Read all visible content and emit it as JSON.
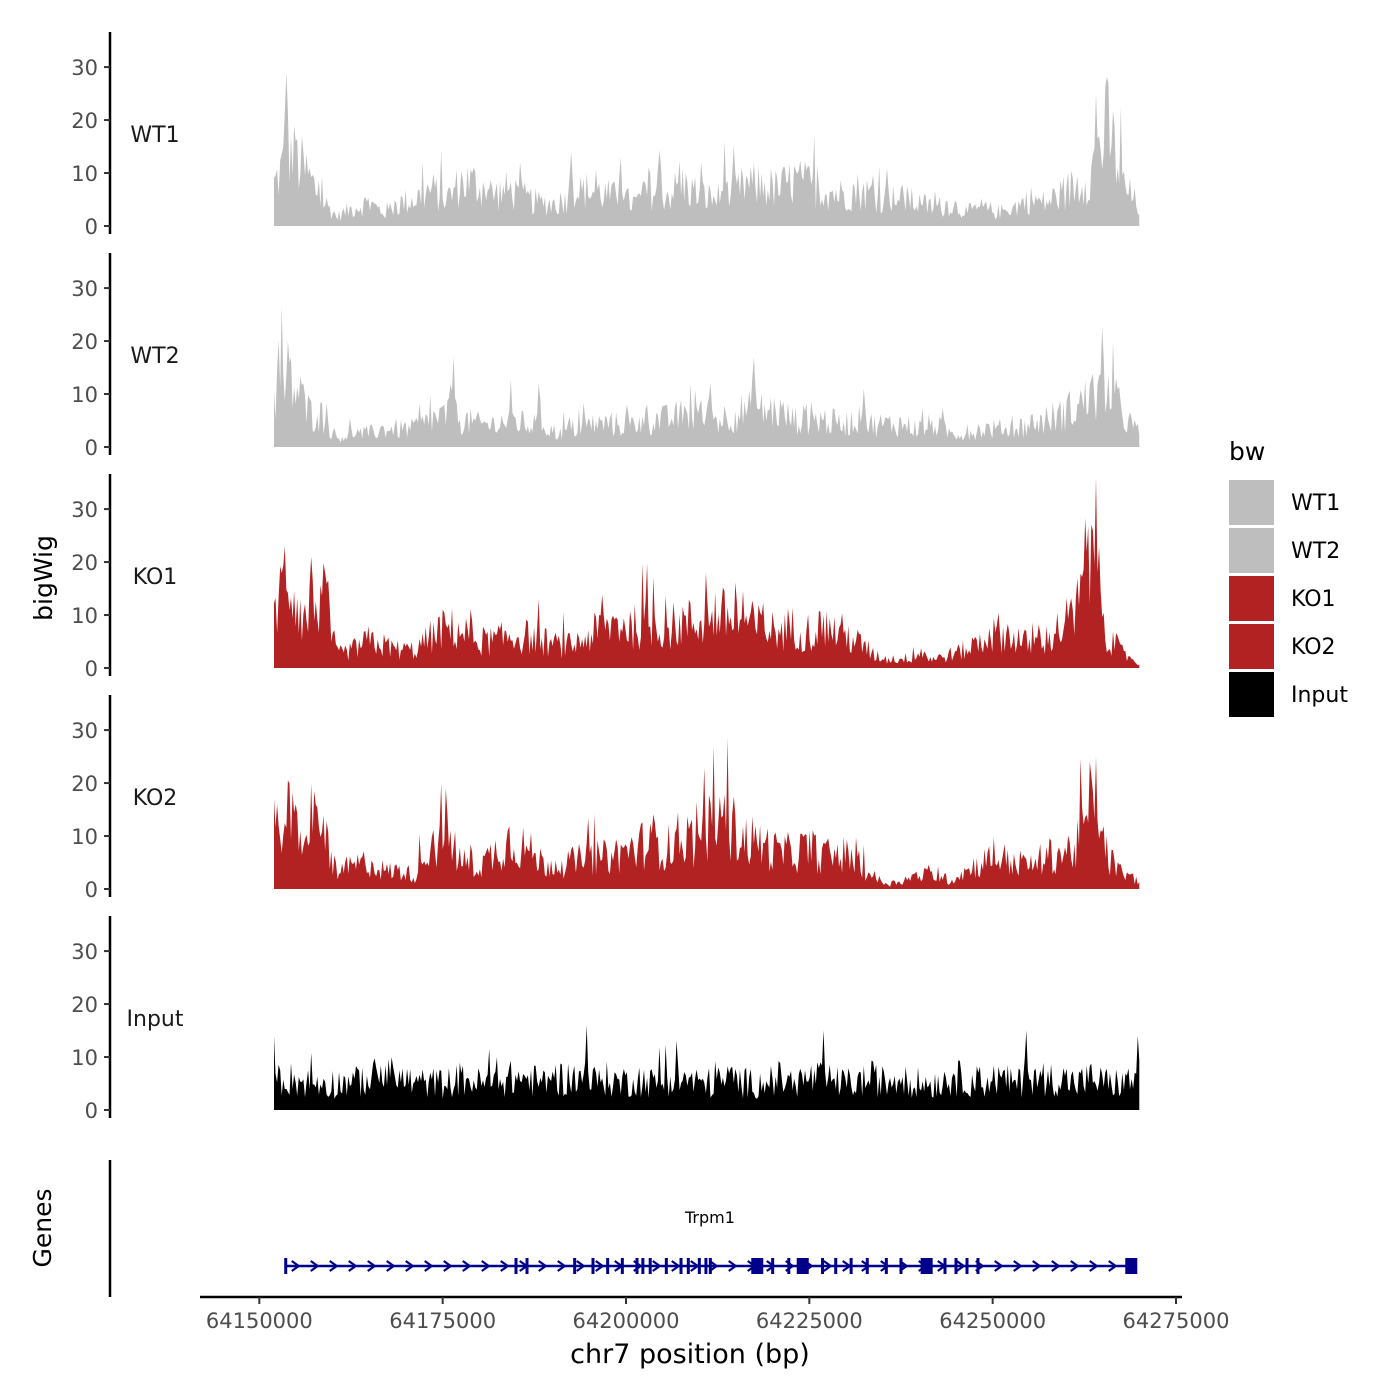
{
  "chart_data": {
    "type": "area",
    "title": "",
    "ylabel": "bigWig",
    "xlabel": "chr7 position (bp)",
    "ylim": [
      0,
      37
    ],
    "yticks": [
      0,
      10,
      20,
      30
    ],
    "xlim": [
      64146000,
      64275000
    ],
    "xticks": [
      64150000,
      64175000,
      64200000,
      64225000,
      64250000,
      64275000
    ],
    "xtick_labels": [
      "64150000",
      "64175000",
      "64200000",
      "64225000",
      "64250000",
      "64275000"
    ],
    "data_range": [
      64152000,
      64270000
    ],
    "legend": {
      "title": "bw",
      "placement": "right",
      "entries": [
        {
          "label": "WT1",
          "color": "#bebebe"
        },
        {
          "label": "WT2",
          "color": "#bebebe"
        },
        {
          "label": "KO1",
          "color": "#b22222"
        },
        {
          "label": "KO2",
          "color": "#b22222"
        },
        {
          "label": "Input",
          "color": "#000000"
        }
      ]
    },
    "series": [
      {
        "name": "WT1",
        "color": "#bebebe",
        "profile": [
          9,
          16,
          12,
          6,
          2,
          4,
          5,
          3,
          5,
          6,
          8,
          6,
          10,
          9,
          7,
          8,
          6,
          5,
          5,
          7,
          8,
          7,
          6,
          5,
          8,
          7,
          9,
          7,
          6,
          7,
          9,
          9,
          8,
          10,
          9,
          8,
          7,
          8,
          7,
          6,
          6,
          5,
          4,
          5,
          3,
          4,
          3,
          4,
          6,
          5,
          7,
          9,
          12,
          22,
          9,
          4
        ],
        "peaks": [
          [
            64153700,
            29
          ],
          [
            64155000,
            16
          ],
          [
            64185500,
            12
          ],
          [
            64192500,
            14
          ],
          [
            64199300,
            13
          ],
          [
            64213500,
            16
          ],
          [
            64235500,
            11
          ],
          [
            64264000,
            25
          ]
        ]
      },
      {
        "name": "WT2",
        "color": "#bebebe",
        "profile": [
          12,
          15,
          8,
          7,
          2,
          3,
          3,
          4,
          4,
          4,
          6,
          7,
          6,
          5,
          5,
          6,
          5,
          5,
          3,
          4,
          5,
          5,
          5,
          5,
          6,
          6,
          7,
          7,
          6,
          7,
          8,
          8,
          8,
          6,
          6,
          6,
          5,
          6,
          5,
          5,
          5,
          4,
          5,
          3,
          3,
          4,
          4,
          4,
          5,
          6,
          7,
          9,
          11,
          13,
          7,
          3
        ],
        "peaks": [
          [
            64153800,
            20
          ],
          [
            64156000,
            12
          ],
          [
            64176500,
            17
          ],
          [
            64188000,
            12
          ],
          [
            64211500,
            12
          ],
          [
            64217500,
            17
          ],
          [
            64232500,
            11
          ]
        ]
      },
      {
        "name": "KO1",
        "color": "#b22222",
        "profile": [
          14,
          20,
          10,
          17,
          3,
          4,
          6,
          5,
          4,
          4,
          7,
          9,
          8,
          6,
          6,
          7,
          7,
          6,
          5,
          5,
          7,
          9,
          10,
          9,
          10,
          9,
          10,
          10,
          12,
          11,
          10,
          9,
          8,
          9,
          8,
          9,
          8,
          6,
          3,
          2,
          2,
          3,
          2,
          3,
          4,
          6,
          8,
          7,
          5,
          6,
          9,
          12,
          30,
          7,
          3,
          1
        ],
        "peaks": [
          [
            64153500,
            23
          ],
          [
            64157000,
            21
          ],
          [
            64210800,
            18
          ],
          [
            64264000,
            36
          ]
        ]
      },
      {
        "name": "KO2",
        "color": "#b22222",
        "profile": [
          13,
          16,
          8,
          15,
          3,
          5,
          6,
          4,
          4,
          3,
          11,
          9,
          6,
          5,
          8,
          11,
          9,
          6,
          5,
          6,
          7,
          7,
          8,
          9,
          11,
          9,
          12,
          10,
          15,
          14,
          11,
          10,
          8,
          8,
          9,
          7,
          8,
          6,
          3,
          1,
          2,
          3,
          3,
          2,
          4,
          6,
          7,
          6,
          5,
          7,
          8,
          9,
          20,
          7,
          3,
          2
        ],
        "peaks": [
          [
            64157000,
            20
          ],
          [
            64175500,
            19
          ],
          [
            64210600,
            23
          ],
          [
            64264000,
            25
          ]
        ]
      },
      {
        "name": "Input",
        "color": "#000000",
        "profile": [
          7,
          7,
          6,
          6,
          6,
          6,
          7,
          8,
          7,
          6,
          6,
          6,
          7,
          6,
          6,
          7,
          7,
          6,
          7,
          7,
          6,
          7,
          6,
          7,
          6,
          7,
          7,
          6,
          6,
          7,
          6,
          6,
          7,
          6,
          7,
          7,
          6,
          6,
          7,
          6,
          7,
          6,
          6,
          7,
          7,
          6,
          7,
          6,
          6,
          7,
          7,
          6,
          7,
          6,
          6,
          7
        ],
        "peaks": [
          [
            64194600,
            16
          ],
          [
            64152000,
            14
          ],
          [
            64254500,
            15
          ],
          [
            64269800,
            14
          ]
        ]
      }
    ],
    "genes_track": {
      "label": "Genes",
      "gene_name": "Trpm1",
      "color": "#00008b",
      "strand": "+",
      "start": 64153600,
      "end": 64269300,
      "exons": [
        64153600,
        64185000,
        64186500,
        64193000,
        64195500,
        64197500,
        64199500,
        64201500,
        64202300,
        64203300,
        64205500,
        64207500,
        64208500,
        64210000,
        64210900,
        64211500,
        64218000,
        64220000,
        64222200,
        64224200,
        64226800,
        64228600,
        64230700,
        64232900,
        64235500,
        64237500,
        64241000,
        64243500,
        64245000,
        64246500,
        64248000,
        64268800
      ],
      "exon_blocks": [
        64217900,
        64224100,
        64241000,
        64268900
      ]
    }
  }
}
